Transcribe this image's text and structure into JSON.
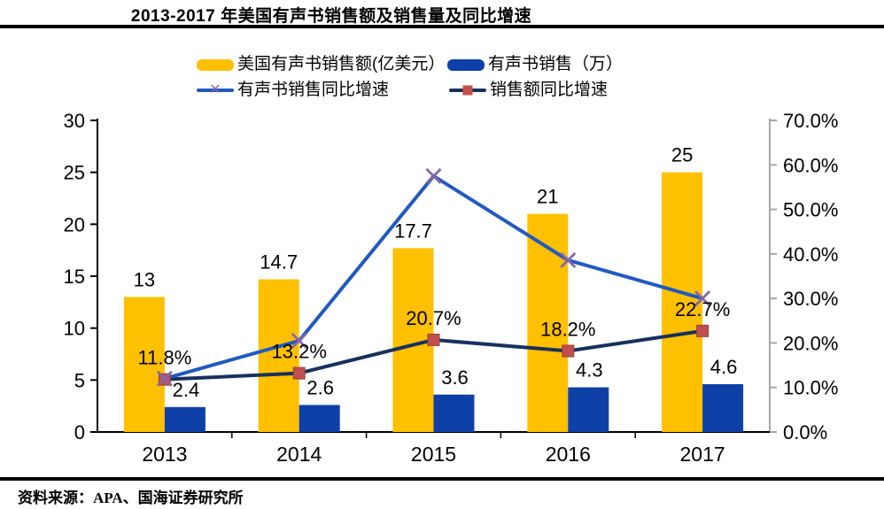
{
  "title": "2013-2017 年美国有声书销售额及销售量及同比增速",
  "source": "资料来源：APA、国海证券研究所",
  "icons": {
    "x_marker": "✕"
  },
  "legend": [
    {
      "label": "美国有声书销售额(亿美元）",
      "swatch": "bar",
      "color": "#FFC000",
      "marker_color": "#FFC000"
    },
    {
      "label": "有声书销售（万）",
      "swatch": "bar",
      "color": "#0E40A8",
      "marker_color": "#0E40A8"
    },
    {
      "label": "有声书销售同比增速",
      "swatch": "line-x",
      "color": "#2159BE",
      "marker_color": "#8667A8"
    },
    {
      "label": "销售额同比增速",
      "swatch": "line-square",
      "color": "#17315E",
      "marker_color": "#C0504D"
    }
  ],
  "chart_data": {
    "type": "combo",
    "categories": [
      "2013",
      "2014",
      "2015",
      "2016",
      "2017"
    ],
    "series": [
      {
        "name": "美国有声书销售额(亿美元）",
        "type": "bar",
        "axis": "left",
        "color": "#FFC000",
        "values": [
          13,
          14.7,
          17.7,
          21,
          25
        ],
        "labels": [
          "13",
          "14.7",
          "17.7",
          "21",
          "25"
        ]
      },
      {
        "name": "有声书销售（万）",
        "type": "bar",
        "axis": "left",
        "color": "#0E40A8",
        "values": [
          2.4,
          2.6,
          3.6,
          4.3,
          4.6
        ],
        "labels": [
          "2.4",
          "2.6",
          "3.6",
          "4.3",
          "4.6"
        ]
      },
      {
        "name": "有声书销售同比增速",
        "type": "line",
        "axis": "right",
        "color": "#2159BE",
        "marker": "x",
        "marker_color": "#8667A8",
        "values_pct": [
          12.0,
          20.5,
          57.5,
          38.6,
          30.0
        ],
        "labels": [
          "",
          "",
          "",
          "",
          ""
        ]
      },
      {
        "name": "销售额同比增速",
        "type": "line",
        "axis": "right",
        "color": "#17315E",
        "marker": "square",
        "marker_color": "#C0504D",
        "values_pct": [
          11.8,
          13.2,
          20.7,
          18.2,
          22.7
        ],
        "labels": [
          "11.8%",
          "13.2%",
          "20.7%",
          "18.2%",
          "22.7%"
        ]
      }
    ],
    "left_axis": {
      "min": 0,
      "max": 30,
      "step": 5,
      "ticks": [
        "0",
        "5",
        "10",
        "15",
        "20",
        "25",
        "30"
      ]
    },
    "right_axis": {
      "min": 0,
      "max": 70,
      "step": 10,
      "ticks": [
        "0.0%",
        "10.0%",
        "20.0%",
        "30.0%",
        "40.0%",
        "50.0%",
        "60.0%",
        "70.0%"
      ]
    },
    "grid": false,
    "legend_position": "top"
  }
}
